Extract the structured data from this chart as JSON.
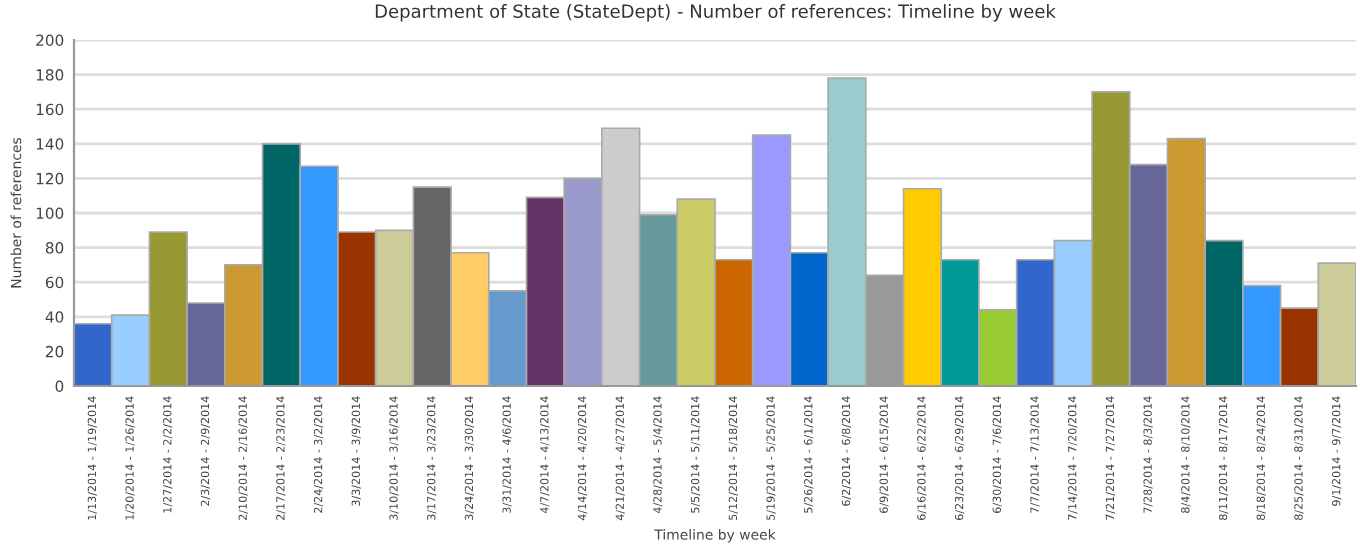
{
  "chart_data": {
    "type": "bar",
    "title": "Department of State (StateDept) - Number of references: Timeline by week",
    "xlabel": "Timeline by week",
    "ylabel": "Number of references",
    "categories": [
      "1/13/2014 - 1/19/2014",
      "1/20/2014 - 1/26/2014",
      "1/27/2014 - 2/2/2014",
      "2/3/2014 - 2/9/2014",
      "2/10/2014 - 2/16/2014",
      "2/17/2014 - 2/23/2014",
      "2/24/2014 - 3/2/2014",
      "3/3/2014 - 3/9/2014",
      "3/10/2014 - 3/16/2014",
      "3/17/2014 - 3/23/2014",
      "3/24/2014 - 3/30/2014",
      "3/31/2014 - 4/6/2014",
      "4/7/2014 - 4/13/2014",
      "4/14/2014 - 4/20/2014",
      "4/21/2014 - 4/27/2014",
      "4/28/2014 - 5/4/2014",
      "5/5/2014 - 5/11/2014",
      "5/12/2014 - 5/18/2014",
      "5/19/2014 - 5/25/2014",
      "5/26/2014 - 6/1/2014",
      "6/2/2014 - 6/8/2014",
      "6/9/2014 - 6/15/2014",
      "6/16/2014 - 6/22/2014",
      "6/23/2014 - 6/29/2014",
      "6/30/2014 - 7/6/2014",
      "7/7/2014 - 7/13/2014",
      "7/14/2014 - 7/20/2014",
      "7/21/2014 - 7/27/2014",
      "7/28/2014 - 8/3/2014",
      "8/4/2014 - 8/10/2014",
      "8/11/2014 - 8/17/2014",
      "8/18/2014 - 8/24/2014",
      "8/25/2014 - 8/31/2014",
      "9/1/2014 - 9/7/2014"
    ],
    "values": [
      36,
      41,
      89,
      48,
      70,
      140,
      127,
      89,
      90,
      115,
      77,
      55,
      109,
      120,
      149,
      99,
      108,
      73,
      145,
      77,
      178,
      64,
      114,
      73,
      44,
      73,
      84,
      170,
      128,
      143,
      84,
      58,
      45,
      71
    ],
    "colors": [
      "#3366cc",
      "#99ccff",
      "#999933",
      "#666699",
      "#cc9933",
      "#006666",
      "#3399ff",
      "#993300",
      "#cccc99",
      "#666666",
      "#ffcc66",
      "#6699cc",
      "#663366",
      "#9999cc",
      "#cccccc",
      "#669999",
      "#cccc66",
      "#cc6600",
      "#9999ff",
      "#0066cc",
      "#99cccc",
      "#999999",
      "#ffcc00",
      "#009999",
      "#99cc33",
      "#3366cc",
      "#99ccff",
      "#999933",
      "#666699",
      "#cc9933",
      "#006666",
      "#3399ff",
      "#993300",
      "#cccc99"
    ],
    "ylim": [
      0,
      200
    ],
    "yticks": [
      0,
      20,
      40,
      60,
      80,
      100,
      120,
      140,
      160,
      180,
      200
    ],
    "grid": "y"
  }
}
